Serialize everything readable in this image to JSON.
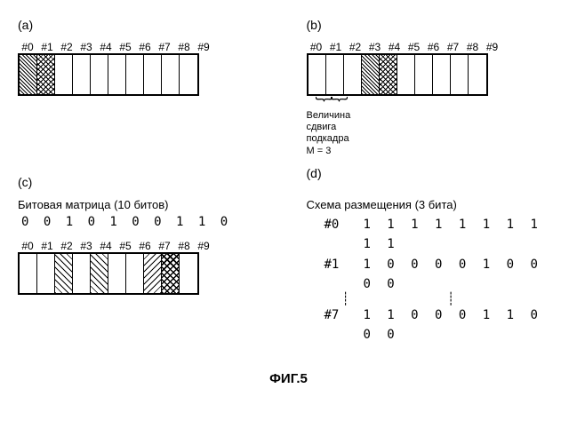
{
  "panels": {
    "a": {
      "label": "(a)",
      "frames": [
        {
          "label": "#0",
          "pattern": "hatch-dense"
        },
        {
          "label": "#1",
          "pattern": "hatch-chevron"
        },
        {
          "label": "#2",
          "pattern": ""
        },
        {
          "label": "#3",
          "pattern": ""
        },
        {
          "label": "#4",
          "pattern": ""
        },
        {
          "label": "#5",
          "pattern": ""
        },
        {
          "label": "#6",
          "pattern": ""
        },
        {
          "label": "#7",
          "pattern": ""
        },
        {
          "label": "#8",
          "pattern": ""
        },
        {
          "label": "#9",
          "pattern": ""
        }
      ]
    },
    "b": {
      "label": "(b)",
      "frames": [
        {
          "label": "#0",
          "pattern": ""
        },
        {
          "label": "#1",
          "pattern": ""
        },
        {
          "label": "#2",
          "pattern": ""
        },
        {
          "label": "#3",
          "pattern": "hatch-dense"
        },
        {
          "label": "#4",
          "pattern": "hatch-chevron"
        },
        {
          "label": "#5",
          "pattern": ""
        },
        {
          "label": "#6",
          "pattern": ""
        },
        {
          "label": "#7",
          "pattern": ""
        },
        {
          "label": "#8",
          "pattern": ""
        },
        {
          "label": "#9",
          "pattern": ""
        }
      ],
      "brace_text1": "Величина",
      "brace_text2": "сдвига",
      "brace_text3": "подкадра",
      "brace_text4": "M = 3"
    },
    "c": {
      "label": "(c)",
      "title": "Битовая матрица (10 битов)",
      "bitstring": "0 0 1 0 1 0 0 1 1 0",
      "frames": [
        {
          "label": "#0",
          "pattern": ""
        },
        {
          "label": "#1",
          "pattern": ""
        },
        {
          "label": "#2",
          "pattern": "hatch-diag1"
        },
        {
          "label": "#3",
          "pattern": ""
        },
        {
          "label": "#4",
          "pattern": "hatch-diag1"
        },
        {
          "label": "#5",
          "pattern": ""
        },
        {
          "label": "#6",
          "pattern": ""
        },
        {
          "label": "#7",
          "pattern": "hatch-diag2"
        },
        {
          "label": "#8",
          "pattern": "hatch-v"
        },
        {
          "label": "#9",
          "pattern": ""
        }
      ]
    },
    "d": {
      "label": "(d)",
      "title": "Схема размещения (3 бита)",
      "rows": [
        {
          "key": "#0",
          "val": "1 1 1 1 1 1 1 1 1 1"
        },
        {
          "key": "#1",
          "val": "1 0 0 0 0 1 0 0 0 0"
        }
      ],
      "last_row": {
        "key": "#7",
        "val": "1 1 0 0 0 1 1 0 0 0"
      }
    }
  },
  "caption": "ФИГ.5",
  "colors": {
    "background": "#ffffff",
    "stroke": "#000000"
  }
}
